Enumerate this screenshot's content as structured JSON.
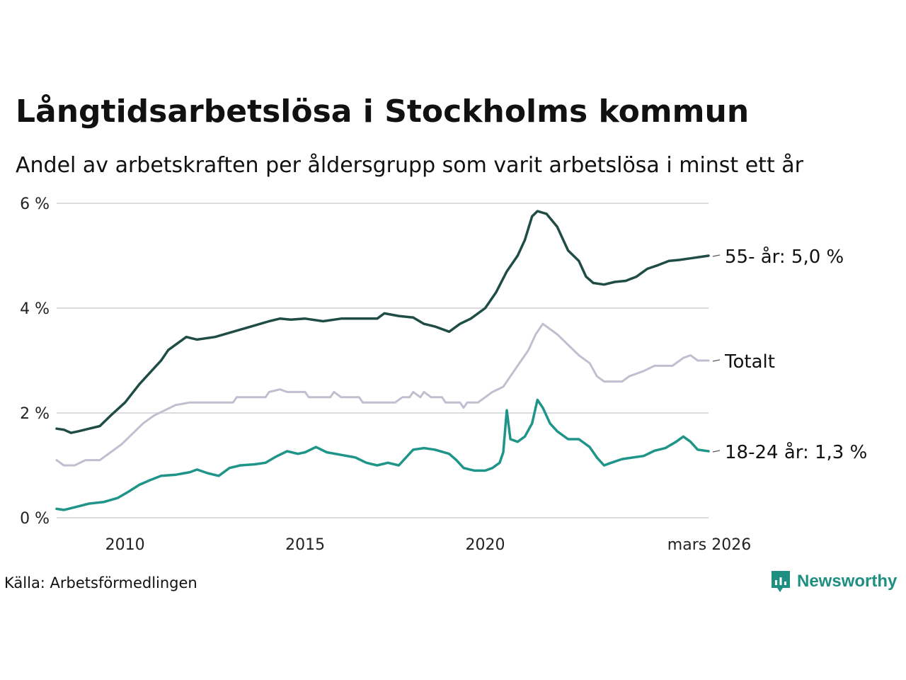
{
  "title": "Långtidsarbetslösa i Stockholms kommun",
  "subtitle": "Andel av arbetskraften per åldersgrupp som varit arbetslösa i minst ett år",
  "source": "Källa: Arbetsförmedlingen",
  "brand": {
    "name": "Newsworthy",
    "icon": "bar-chart-speech-bubble-icon",
    "color": "#1e8f80"
  },
  "chart_data": {
    "type": "line",
    "title": "Långtidsarbetslösa i Stockholms kommun",
    "ylabel": "",
    "xlabel": "",
    "ylim": [
      0,
      6
    ],
    "xlim": [
      2008.1,
      2026.2
    ],
    "grid": true,
    "y_ticks": [
      {
        "value": 0,
        "label": "0 %"
      },
      {
        "value": 2,
        "label": "2 %"
      },
      {
        "value": 4,
        "label": "4 %"
      },
      {
        "value": 6,
        "label": "6 %"
      }
    ],
    "x_ticks": [
      {
        "value": 2010,
        "label": "2010"
      },
      {
        "value": 2015,
        "label": "2015"
      },
      {
        "value": 2020,
        "label": "2020"
      },
      {
        "value": 2026.2,
        "label": "mars 2026"
      }
    ],
    "series": [
      {
        "name": "55-",
        "label": "55- år: 5,0 %",
        "color": "#1f4d45",
        "points": [
          [
            2008.1,
            1.7
          ],
          [
            2008.3,
            1.68
          ],
          [
            2008.5,
            1.62
          ],
          [
            2008.7,
            1.65
          ],
          [
            2009.0,
            1.7
          ],
          [
            2009.3,
            1.75
          ],
          [
            2009.6,
            1.95
          ],
          [
            2010.0,
            2.2
          ],
          [
            2010.4,
            2.55
          ],
          [
            2010.8,
            2.85
          ],
          [
            2011.0,
            3.0
          ],
          [
            2011.2,
            3.2
          ],
          [
            2011.5,
            3.35
          ],
          [
            2011.7,
            3.45
          ],
          [
            2012.0,
            3.4
          ],
          [
            2012.5,
            3.45
          ],
          [
            2013.0,
            3.55
          ],
          [
            2013.5,
            3.65
          ],
          [
            2014.0,
            3.75
          ],
          [
            2014.3,
            3.8
          ],
          [
            2014.6,
            3.78
          ],
          [
            2015.0,
            3.8
          ],
          [
            2015.5,
            3.75
          ],
          [
            2016.0,
            3.8
          ],
          [
            2016.5,
            3.8
          ],
          [
            2017.0,
            3.8
          ],
          [
            2017.2,
            3.9
          ],
          [
            2017.6,
            3.85
          ],
          [
            2018.0,
            3.82
          ],
          [
            2018.3,
            3.7
          ],
          [
            2018.6,
            3.65
          ],
          [
            2019.0,
            3.55
          ],
          [
            2019.3,
            3.7
          ],
          [
            2019.6,
            3.8
          ],
          [
            2020.0,
            4.0
          ],
          [
            2020.3,
            4.3
          ],
          [
            2020.6,
            4.7
          ],
          [
            2020.9,
            5.0
          ],
          [
            2021.1,
            5.3
          ],
          [
            2021.3,
            5.75
          ],
          [
            2021.45,
            5.85
          ],
          [
            2021.7,
            5.8
          ],
          [
            2022.0,
            5.55
          ],
          [
            2022.3,
            5.1
          ],
          [
            2022.6,
            4.9
          ],
          [
            2022.8,
            4.6
          ],
          [
            2023.0,
            4.48
          ],
          [
            2023.3,
            4.45
          ],
          [
            2023.6,
            4.5
          ],
          [
            2023.9,
            4.52
          ],
          [
            2024.2,
            4.6
          ],
          [
            2024.5,
            4.75
          ],
          [
            2024.8,
            4.82
          ],
          [
            2025.1,
            4.9
          ],
          [
            2025.4,
            4.92
          ],
          [
            2025.7,
            4.95
          ],
          [
            2026.0,
            4.98
          ],
          [
            2026.2,
            5.0
          ]
        ]
      },
      {
        "name": "Totalt",
        "label": "Totalt",
        "color": "#c1bfcf",
        "points": [
          [
            2008.1,
            1.1
          ],
          [
            2008.3,
            1.0
          ],
          [
            2008.6,
            1.0
          ],
          [
            2008.9,
            1.1
          ],
          [
            2009.3,
            1.1
          ],
          [
            2009.6,
            1.25
          ],
          [
            2009.9,
            1.4
          ],
          [
            2010.2,
            1.6
          ],
          [
            2010.5,
            1.8
          ],
          [
            2010.8,
            1.95
          ],
          [
            2011.1,
            2.05
          ],
          [
            2011.4,
            2.15
          ],
          [
            2011.8,
            2.2
          ],
          [
            2012.5,
            2.2
          ],
          [
            2013.0,
            2.2
          ],
          [
            2013.1,
            2.3
          ],
          [
            2013.5,
            2.3
          ],
          [
            2013.9,
            2.3
          ],
          [
            2014.0,
            2.4
          ],
          [
            2014.3,
            2.45
          ],
          [
            2014.5,
            2.4
          ],
          [
            2015.0,
            2.4
          ],
          [
            2015.1,
            2.3
          ],
          [
            2015.7,
            2.3
          ],
          [
            2015.8,
            2.4
          ],
          [
            2016.0,
            2.3
          ],
          [
            2016.5,
            2.3
          ],
          [
            2016.6,
            2.2
          ],
          [
            2017.5,
            2.2
          ],
          [
            2017.7,
            2.3
          ],
          [
            2017.9,
            2.3
          ],
          [
            2018.0,
            2.4
          ],
          [
            2018.2,
            2.3
          ],
          [
            2018.3,
            2.4
          ],
          [
            2018.5,
            2.3
          ],
          [
            2018.8,
            2.3
          ],
          [
            2018.9,
            2.2
          ],
          [
            2019.3,
            2.2
          ],
          [
            2019.4,
            2.1
          ],
          [
            2019.5,
            2.2
          ],
          [
            2019.8,
            2.2
          ],
          [
            2020.0,
            2.3
          ],
          [
            2020.2,
            2.4
          ],
          [
            2020.5,
            2.5
          ],
          [
            2020.8,
            2.8
          ],
          [
            2021.0,
            3.0
          ],
          [
            2021.2,
            3.2
          ],
          [
            2021.4,
            3.5
          ],
          [
            2021.6,
            3.7
          ],
          [
            2021.8,
            3.6
          ],
          [
            2022.0,
            3.5
          ],
          [
            2022.3,
            3.3
          ],
          [
            2022.6,
            3.1
          ],
          [
            2022.9,
            2.95
          ],
          [
            2023.1,
            2.7
          ],
          [
            2023.3,
            2.6
          ],
          [
            2023.8,
            2.6
          ],
          [
            2024.0,
            2.7
          ],
          [
            2024.4,
            2.8
          ],
          [
            2024.7,
            2.9
          ],
          [
            2025.2,
            2.9
          ],
          [
            2025.5,
            3.05
          ],
          [
            2025.7,
            3.1
          ],
          [
            2025.9,
            3.0
          ],
          [
            2026.2,
            3.0
          ]
        ]
      },
      {
        "name": "18-24",
        "label": "18-24 år: 1,3 %",
        "color": "#1f9488",
        "points": [
          [
            2008.1,
            0.17
          ],
          [
            2008.3,
            0.15
          ],
          [
            2008.6,
            0.2
          ],
          [
            2009.0,
            0.27
          ],
          [
            2009.4,
            0.3
          ],
          [
            2009.8,
            0.38
          ],
          [
            2010.1,
            0.5
          ],
          [
            2010.4,
            0.63
          ],
          [
            2010.7,
            0.72
          ],
          [
            2011.0,
            0.8
          ],
          [
            2011.4,
            0.82
          ],
          [
            2011.8,
            0.87
          ],
          [
            2012.0,
            0.92
          ],
          [
            2012.3,
            0.85
          ],
          [
            2012.6,
            0.8
          ],
          [
            2012.9,
            0.95
          ],
          [
            2013.2,
            1.0
          ],
          [
            2013.6,
            1.02
          ],
          [
            2013.9,
            1.05
          ],
          [
            2014.2,
            1.17
          ],
          [
            2014.5,
            1.27
          ],
          [
            2014.8,
            1.22
          ],
          [
            2015.0,
            1.25
          ],
          [
            2015.3,
            1.35
          ],
          [
            2015.6,
            1.25
          ],
          [
            2016.0,
            1.2
          ],
          [
            2016.4,
            1.15
          ],
          [
            2016.7,
            1.05
          ],
          [
            2017.0,
            1.0
          ],
          [
            2017.3,
            1.05
          ],
          [
            2017.6,
            1.0
          ],
          [
            2018.0,
            1.3
          ],
          [
            2018.3,
            1.33
          ],
          [
            2018.6,
            1.3
          ],
          [
            2019.0,
            1.22
          ],
          [
            2019.2,
            1.1
          ],
          [
            2019.4,
            0.95
          ],
          [
            2019.7,
            0.9
          ],
          [
            2020.0,
            0.9
          ],
          [
            2020.2,
            0.95
          ],
          [
            2020.4,
            1.05
          ],
          [
            2020.5,
            1.25
          ],
          [
            2020.6,
            2.05
          ],
          [
            2020.7,
            1.5
          ],
          [
            2020.9,
            1.45
          ],
          [
            2021.1,
            1.55
          ],
          [
            2021.3,
            1.8
          ],
          [
            2021.45,
            2.25
          ],
          [
            2021.6,
            2.1
          ],
          [
            2021.8,
            1.8
          ],
          [
            2022.0,
            1.65
          ],
          [
            2022.3,
            1.5
          ],
          [
            2022.6,
            1.5
          ],
          [
            2022.9,
            1.35
          ],
          [
            2023.1,
            1.15
          ],
          [
            2023.3,
            1.0
          ],
          [
            2023.5,
            1.05
          ],
          [
            2023.8,
            1.12
          ],
          [
            2024.1,
            1.15
          ],
          [
            2024.4,
            1.18
          ],
          [
            2024.7,
            1.28
          ],
          [
            2025.0,
            1.33
          ],
          [
            2025.3,
            1.45
          ],
          [
            2025.5,
            1.55
          ],
          [
            2025.7,
            1.45
          ],
          [
            2025.9,
            1.3
          ],
          [
            2026.2,
            1.27
          ]
        ]
      }
    ]
  }
}
